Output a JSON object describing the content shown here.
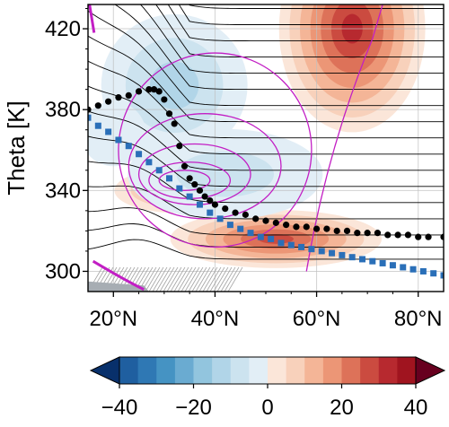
{
  "chart_data": {
    "type": "heatmap",
    "title": "",
    "xlabel": "",
    "ylabel": "Theta [K]",
    "xlim": [
      15,
      85
    ],
    "ylim": [
      290,
      432
    ],
    "x_ticks": [
      {
        "value": 20,
        "label": "20°N"
      },
      {
        "value": 40,
        "label": "40°N"
      },
      {
        "value": 60,
        "label": "60°N"
      },
      {
        "value": 80,
        "label": "80°N"
      }
    ],
    "y_ticks": [
      {
        "value": 300,
        "label": "300"
      },
      {
        "value": 340,
        "label": "340"
      },
      {
        "value": 380,
        "label": "380"
      },
      {
        "value": 420,
        "label": "420"
      }
    ],
    "grid": true,
    "colorbar": {
      "range": [
        -40,
        40
      ],
      "orientation": "horizontal",
      "extend": "both",
      "levels": [
        -40,
        -35,
        -30,
        -25,
        -20,
        -15,
        -10,
        -5,
        0,
        5,
        10,
        15,
        20,
        25,
        30,
        35,
        40
      ],
      "ticks": [
        {
          "value": -40,
          "label": "−40"
        },
        {
          "value": -20,
          "label": "−20"
        },
        {
          "value": 0,
          "label": "0"
        },
        {
          "value": 20,
          "label": "20"
        },
        {
          "value": 40,
          "label": "40"
        }
      ],
      "neg_colors": [
        "#1f5fa0",
        "#2f78b4",
        "#4593c3",
        "#6aabd1",
        "#92c5de",
        "#b1d5e8",
        "#cce3ef",
        "#e2eef6"
      ],
      "pos_colors": [
        "#fbe6d9",
        "#f8d1bb",
        "#f4b597",
        "#ec9676",
        "#dd7259",
        "#cb4b40",
        "#b7292f",
        "#a0141f"
      ]
    },
    "filled_contours": [
      {
        "sign": "positive",
        "peak": 35,
        "lat": 67,
        "theta": 420,
        "lat_width": 9,
        "theta_width": 32
      },
      {
        "sign": "positive",
        "peak": 30,
        "lat": 52,
        "theta": 316,
        "lat_width": 13,
        "theta_width": 9
      },
      {
        "sign": "positive",
        "peak": 22,
        "lat": 33,
        "theta": 340,
        "lat_width": 8,
        "theta_width": 7
      },
      {
        "sign": "negative",
        "peak": -18,
        "lat": 32,
        "theta": 392,
        "lat_width": 9,
        "theta_width": 22
      },
      {
        "sign": "negative",
        "peak": -10,
        "lat": 42,
        "theta": 348,
        "lat_width": 12,
        "theta_width": 14
      },
      {
        "sign": "negative",
        "peak": -6,
        "lat": 20,
        "theta": 368,
        "lat_width": 4,
        "theta_width": 10
      }
    ],
    "series": [
      {
        "marker": "square",
        "color": "#2a6fb8",
        "x": [
          15,
          17,
          19,
          21,
          23,
          25,
          27,
          29,
          31,
          33,
          35,
          37,
          39,
          41,
          43,
          45,
          47,
          49,
          51,
          53,
          55,
          57,
          59,
          61,
          63,
          65,
          67,
          69,
          71,
          73,
          75,
          77,
          79,
          81,
          83,
          85
        ],
        "y": [
          376,
          372,
          369,
          365,
          362,
          358,
          354,
          350,
          346,
          341,
          337,
          333,
          329,
          326,
          323,
          321,
          319,
          317,
          316,
          314,
          313,
          312,
          311,
          310,
          309,
          308,
          307,
          306,
          305,
          304,
          303,
          302,
          301,
          300,
          299,
          298
        ]
      },
      {
        "marker": "circle",
        "color": "#000000",
        "x": [
          15,
          17,
          19,
          21,
          23,
          25,
          27,
          28,
          29,
          30,
          31,
          32,
          33,
          34,
          35,
          36,
          37,
          38,
          39,
          40,
          42,
          44,
          46,
          48,
          50,
          52,
          54,
          56,
          58,
          60,
          62,
          64,
          66,
          68,
          70,
          72,
          74,
          76,
          78,
          80,
          82,
          85
        ],
        "y": [
          380,
          382,
          384,
          386,
          387,
          389,
          390,
          390,
          389,
          385,
          378,
          373,
          362,
          352,
          346,
          343,
          340,
          337,
          335,
          333,
          331,
          329,
          328,
          326,
          325,
          324,
          323,
          322,
          322,
          321,
          321,
          320,
          320,
          319,
          319,
          319,
          318,
          318,
          318,
          317,
          317,
          317
        ]
      }
    ],
    "black_contours_theta_at_85N": [
      306,
      312,
      318,
      326,
      334,
      342,
      350,
      358,
      366,
      374,
      382,
      390,
      398,
      406,
      414,
      422,
      430
    ]
  }
}
